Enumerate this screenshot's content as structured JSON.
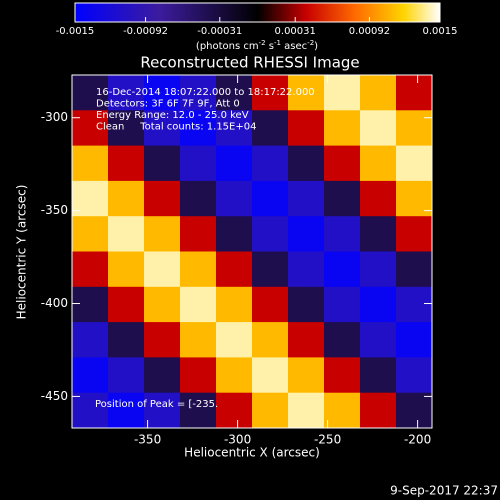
{
  "chart_data": {
    "type": "heatmap",
    "title": "Reconstructed RHESSI Image",
    "xlabel": "Heliocentric X (arcsec)",
    "ylabel": "Heliocentric Y (arcsec)",
    "annotations": [
      "16-Dec-2014 18:07:22.000 to 18:17:22.000",
      "Detectors: 3F 6F 7F 9F, Att 0",
      "Energy Range: 12.0 - 25.0 keV",
      "Clean     Total counts: 1.15E+04"
    ],
    "peak_label": "Position of Peak = [-235.",
    "footer": "9-Sep-2017 22:37",
    "colorbar_label": [
      {
        "text": "(photons cm",
        "sup": false
      },
      {
        "text": "-2",
        "sup": true
      },
      {
        "text": " s",
        "sup": false
      },
      {
        "text": "-1",
        "sup": true
      },
      {
        "text": " asec",
        "sup": false
      },
      {
        "text": "-2",
        "sup": true
      },
      {
        "text": ")",
        "sup": false
      }
    ],
    "cbar_lim": [
      -0.0015,
      0.0015
    ],
    "cbar_ticks": [
      -0.0015,
      -0.00092,
      -0.00031,
      0.00031,
      0.00092,
      0.0015
    ],
    "colorscale": [
      [
        -0.0015,
        "#0000ff"
      ],
      [
        -0.0008,
        "#3c1c9c"
      ],
      [
        0,
        "#000000"
      ],
      [
        0.0004,
        "#c80000"
      ],
      [
        0.0008,
        "#ff6a00"
      ],
      [
        0.0012,
        "#ffd400"
      ],
      [
        0.0015,
        "#ffffff"
      ]
    ],
    "xlim": [
      -392,
      -192
    ],
    "ylim": [
      -467,
      -277
    ],
    "xticks": [
      -350,
      -300,
      -250,
      -200
    ],
    "yticks": [
      -300,
      -350,
      -400,
      -450
    ],
    "x": [
      -382,
      -362,
      -342,
      -322,
      -302,
      -282,
      -262,
      -242,
      -222,
      -202
    ],
    "y": [
      -286.5,
      -305.5,
      -324.5,
      -343.5,
      -362.5,
      -381.5,
      -400.5,
      -419.5,
      -438.5,
      -457.5
    ],
    "z": [
      [
        -0.0004,
        -0.0011,
        -0.0014,
        -0.0011,
        -0.0004,
        0.0004,
        0.0011,
        0.0014,
        0.0011,
        0.0004
      ],
      [
        0.0004,
        -0.0004,
        -0.0011,
        -0.0014,
        -0.0011,
        -0.0004,
        0.0004,
        0.0011,
        0.0014,
        0.0011
      ],
      [
        0.0011,
        0.0004,
        -0.0004,
        -0.0011,
        -0.0014,
        -0.0011,
        -0.0004,
        0.0004,
        0.0011,
        0.0014
      ],
      [
        0.0014,
        0.0011,
        0.0004,
        -0.0004,
        -0.0011,
        -0.0014,
        -0.0011,
        -0.0004,
        0.0004,
        0.0011
      ],
      [
        0.0011,
        0.0014,
        0.0011,
        0.0004,
        -0.0004,
        -0.0011,
        -0.0014,
        -0.0011,
        -0.0004,
        0.0004
      ],
      [
        0.0004,
        0.0011,
        0.0014,
        0.0011,
        0.0004,
        -0.0004,
        -0.0011,
        -0.0014,
        -0.0011,
        -0.0004
      ],
      [
        -0.0004,
        0.0004,
        0.0011,
        0.0014,
        0.0011,
        0.0004,
        -0.0004,
        -0.0011,
        -0.0014,
        -0.0011
      ],
      [
        -0.0011,
        -0.0004,
        0.0004,
        0.0011,
        0.0014,
        0.0011,
        0.0004,
        -0.0004,
        -0.0011,
        -0.0014
      ],
      [
        -0.0014,
        -0.0011,
        -0.0004,
        0.0004,
        0.0011,
        0.0014,
        0.0011,
        0.0004,
        -0.0004,
        -0.0011
      ],
      [
        -0.0011,
        -0.0014,
        -0.0011,
        -0.0004,
        0.0004,
        0.0011,
        0.0014,
        0.0011,
        0.0004,
        -0.0004
      ]
    ]
  }
}
